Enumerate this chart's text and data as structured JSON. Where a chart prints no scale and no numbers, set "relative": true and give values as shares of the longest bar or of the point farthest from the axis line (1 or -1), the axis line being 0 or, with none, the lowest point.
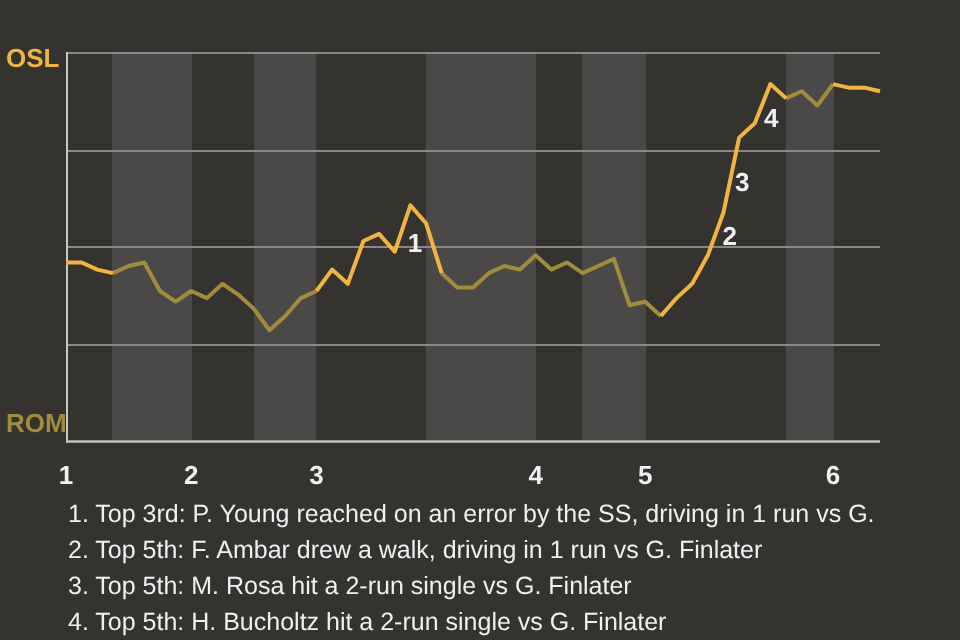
{
  "chart_data": {
    "type": "line",
    "relative": true,
    "grid": "y",
    "legend": "left",
    "marker": "none",
    "line_style": "solid",
    "categories": [
      "1",
      null,
      null,
      null,
      null,
      null,
      null,
      null,
      "2",
      null,
      null,
      null,
      null,
      null,
      null,
      null,
      "3",
      null,
      null,
      null,
      null,
      null,
      null,
      null,
      null,
      null,
      null,
      null,
      null,
      null,
      "4",
      null,
      null,
      null,
      null,
      null,
      null,
      "5",
      null,
      null,
      null,
      null,
      null,
      null,
      null,
      null,
      null,
      null,
      null,
      "6",
      null,
      null,
      null
    ],
    "series": [
      {
        "name": "OSL",
        "color": "#f2b441",
        "values": [
          0.5,
          0.5,
          0.48,
          0.47,
          null,
          null,
          null,
          null,
          null,
          null,
          null,
          null,
          null,
          null,
          null,
          null,
          0.42,
          0.48,
          0.44,
          0.56,
          0.58,
          0.53,
          0.66,
          0.61,
          0.47,
          null,
          null,
          null,
          null,
          null,
          null,
          null,
          null,
          null,
          null,
          null,
          null,
          null,
          0.35,
          0.4,
          0.44,
          0.52,
          0.64,
          0.85,
          0.89,
          1.0,
          0.96,
          null,
          null,
          1.0,
          0.99,
          0.99,
          0.98
        ]
      },
      {
        "name": "ROM",
        "color": "#a08c3c",
        "values": [
          null,
          null,
          null,
          0.47,
          0.49,
          0.5,
          0.42,
          0.39,
          0.42,
          0.4,
          0.44,
          0.41,
          0.37,
          0.31,
          0.35,
          0.4,
          0.42,
          null,
          null,
          null,
          null,
          null,
          null,
          null,
          0.47,
          0.43,
          0.43,
          0.47,
          0.49,
          0.48,
          0.52,
          0.48,
          0.5,
          0.47,
          0.49,
          0.51,
          0.38,
          0.39,
          0.35,
          null,
          null,
          null,
          null,
          null,
          null,
          null,
          0.96,
          0.98,
          0.94,
          1.0,
          null,
          null,
          null
        ]
      }
    ],
    "annotations": [
      "1",
      "2",
      "3",
      "4",
      "1. Top 3rd: P. Young reached on an error by the SS, driving in 1 run vs G.",
      "2. Top 5th: F. Ambar drew a walk, driving in 1 run vs G. Finlater",
      "3. Top 5th: M. Rosa hit a 2-run single vs G. Finlater",
      "4. Top 5th: H. Bucholtz hit a 2-run single vs G. Finlater"
    ]
  }
}
